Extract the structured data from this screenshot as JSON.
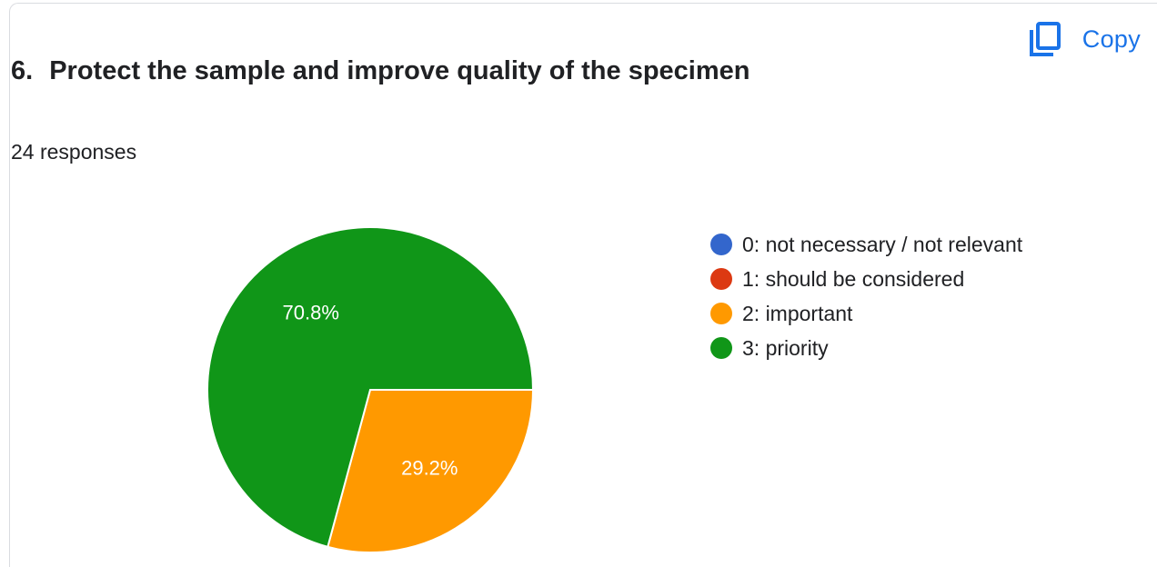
{
  "header": {
    "question_number": "6.",
    "question_title": "Protect the sample and improve quality of the specimen",
    "responses_text": "24 responses",
    "copy_label": "Copy",
    "copy_icon": "copy-icon"
  },
  "colors": {
    "accent": "#1a73e8",
    "text": "#202124",
    "border": "#dadce0"
  },
  "chart_data": {
    "type": "pie",
    "title": "Protect the sample and improve quality of the specimen",
    "total_responses": 24,
    "legend_position": "right",
    "categories": [
      "0: not necessary / not relevant",
      "1: should be considered",
      "2: important",
      "3: priority"
    ],
    "counts": [
      0,
      0,
      7,
      17
    ],
    "values_percent": [
      0,
      0,
      29.2,
      70.8
    ],
    "labels": [
      "",
      "",
      "29.2%",
      "70.8%"
    ],
    "colors": [
      "#3366cc",
      "#dc3912",
      "#ff9900",
      "#109618"
    ]
  }
}
